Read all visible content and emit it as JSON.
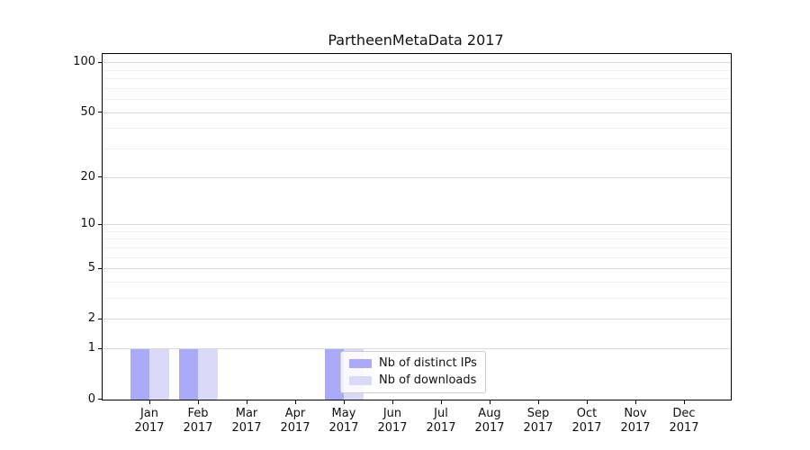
{
  "title": "PartheenMetaData 2017",
  "chart_data": {
    "type": "bar",
    "title": "PartheenMetaData 2017",
    "xlabel": "",
    "ylabel": "",
    "yscale": "log1p",
    "ylim": [
      0,
      113
    ],
    "y_major_ticks": [
      0,
      1,
      2,
      5,
      10,
      20,
      50,
      100
    ],
    "y_minor_gridlines": [
      3,
      4,
      6,
      7,
      8,
      9,
      30,
      40,
      60,
      70,
      80,
      90
    ],
    "grid": "horizontal",
    "legend_position": "lower center",
    "categories": [
      {
        "month": "Jan",
        "year": "2017"
      },
      {
        "month": "Feb",
        "year": "2017"
      },
      {
        "month": "Mar",
        "year": "2017"
      },
      {
        "month": "Apr",
        "year": "2017"
      },
      {
        "month": "May",
        "year": "2017"
      },
      {
        "month": "Jun",
        "year": "2017"
      },
      {
        "month": "Jul",
        "year": "2017"
      },
      {
        "month": "Aug",
        "year": "2017"
      },
      {
        "month": "Sep",
        "year": "2017"
      },
      {
        "month": "Oct",
        "year": "2017"
      },
      {
        "month": "Nov",
        "year": "2017"
      },
      {
        "month": "Dec",
        "year": "2017"
      }
    ],
    "series": [
      {
        "name": "Nb of distinct IPs",
        "color": "#aaaaf8",
        "values": [
          1,
          1,
          0,
          0,
          1,
          0,
          0,
          0,
          0,
          0,
          0,
          0
        ]
      },
      {
        "name": "Nb of downloads",
        "color": "#dadaf8",
        "values": [
          1,
          1,
          0,
          0,
          1,
          0,
          0,
          0,
          0,
          0,
          0,
          0
        ]
      }
    ]
  },
  "colors": {
    "spine": "#000000",
    "grid_major": "#d9d9d9",
    "grid_minor": "#f0f0f0",
    "background": "#ffffff",
    "text": "#111111"
  }
}
